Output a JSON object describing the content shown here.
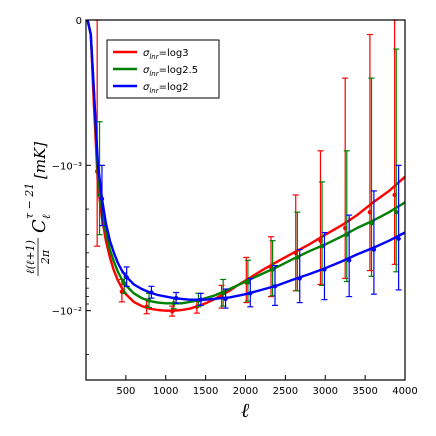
{
  "chart_data": {
    "type": "line",
    "title": "",
    "xlabel": "ℓ",
    "ylabel": "ℓ(ℓ+1)/2π C_ℓ^{τ−21} [mK]",
    "ylabel_parts": {
      "fraction_numerator": "ℓ(ℓ+1)",
      "fraction_denominator": "2π",
      "symbol": "C",
      "subscript": "ℓ",
      "superscript": "τ − 21",
      "unit": "[mK]"
    },
    "xlim": [
      0,
      4000
    ],
    "y_scale": "symlog",
    "y_linthresh": 0.001,
    "ylim": [
      -0.03,
      0
    ],
    "x_ticks": [
      500,
      1000,
      1500,
      2000,
      2500,
      3000,
      3500,
      4000
    ],
    "x_tick_labels": [
      "500",
      "1000",
      "1500",
      "2000",
      "2500",
      "3000",
      "3500",
      "4000"
    ],
    "y_ticks": [
      0,
      -0.001,
      -0.01
    ],
    "y_tick_labels": [
      "0",
      "−10⁻³",
      "−10⁻²"
    ],
    "grid": false,
    "legend_position": "top-left",
    "legend_prefix": "σ",
    "legend_subscript": "lnr",
    "series": [
      {
        "name": "=log3",
        "color": "#ff0000",
        "x": [
          20,
          60,
          100,
          150,
          200,
          250,
          300,
          350,
          400,
          450,
          500,
          600,
          700,
          800,
          900,
          1000,
          1100,
          1200,
          1300,
          1400,
          1500,
          1600,
          1700,
          1800,
          1900,
          2000,
          2200,
          2400,
          2600,
          2800,
          3000,
          3200,
          3400,
          3600,
          3800,
          4000
        ],
        "y": [
          0,
          -0.0001,
          -0.0006,
          -0.0014,
          -0.0023,
          -0.0033,
          -0.0043,
          -0.0053,
          -0.0062,
          -0.007,
          -0.0077,
          -0.0087,
          -0.0093,
          -0.0097,
          -0.0099,
          -0.01,
          -0.01,
          -0.0099,
          -0.0097,
          -0.0093,
          -0.0089,
          -0.0084,
          -0.0078,
          -0.0073,
          -0.0067,
          -0.0062,
          -0.0053,
          -0.0046,
          -0.004,
          -0.0035,
          -0.003,
          -0.0026,
          -0.0022,
          -0.0018,
          -0.0015,
          -0.0012
        ],
        "error_points": [
          {
            "x": 140,
            "y": -0.0011,
            "lo": -0.0036,
            "hi": 0
          },
          {
            "x": 450,
            "y": -0.0074,
            "lo": -0.0087,
            "hi": -0.0061
          },
          {
            "x": 760,
            "y": -0.0094,
            "lo": -0.0105,
            "hi": -0.0083
          },
          {
            "x": 1080,
            "y": -0.0101,
            "lo": -0.0109,
            "hi": -0.0093
          },
          {
            "x": 1390,
            "y": -0.0094,
            "lo": -0.0104,
            "hi": -0.0084
          },
          {
            "x": 1700,
            "y": -0.0081,
            "lo": -0.0096,
            "hi": -0.0067
          },
          {
            "x": 2010,
            "y": -0.0064,
            "lo": -0.0088,
            "hi": -0.0043
          },
          {
            "x": 2320,
            "y": -0.005,
            "lo": -0.008,
            "hi": -0.0031
          },
          {
            "x": 2630,
            "y": -0.004,
            "lo": -0.0073,
            "hi": -0.0016
          },
          {
            "x": 2940,
            "y": -0.0033,
            "lo": -0.0066,
            "hi": -0.0009
          },
          {
            "x": 3250,
            "y": -0.0027,
            "lo": -0.006,
            "hi": -0.0004
          },
          {
            "x": 3560,
            "y": -0.0021,
            "lo": -0.0053,
            "hi": -0.0001
          },
          {
            "x": 3870,
            "y": -0.0016,
            "lo": -0.0048,
            "hi": 0
          }
        ]
      },
      {
        "name": "=log2.5",
        "color": "#008000",
        "x": [
          20,
          60,
          100,
          150,
          200,
          250,
          300,
          350,
          400,
          450,
          500,
          600,
          700,
          800,
          900,
          1000,
          1100,
          1200,
          1300,
          1400,
          1500,
          1600,
          1700,
          1800,
          1900,
          2000,
          2200,
          2400,
          2600,
          2800,
          3000,
          3200,
          3400,
          3600,
          3800,
          4000
        ],
        "y": [
          0,
          -0.0001,
          -0.0005,
          -0.0012,
          -0.002,
          -0.0029,
          -0.0038,
          -0.0046,
          -0.0054,
          -0.0061,
          -0.0067,
          -0.0076,
          -0.0082,
          -0.0086,
          -0.0088,
          -0.0089,
          -0.0089,
          -0.0089,
          -0.0087,
          -0.0085,
          -0.0082,
          -0.0079,
          -0.0075,
          -0.0071,
          -0.0067,
          -0.0063,
          -0.0056,
          -0.005,
          -0.0044,
          -0.0039,
          -0.0035,
          -0.0031,
          -0.0027,
          -0.0024,
          -0.0021,
          -0.0018
        ],
        "error_points": [
          {
            "x": 170,
            "y": -0.0016,
            "lo": -0.003,
            "hi": -0.0007
          },
          {
            "x": 480,
            "y": -0.0065,
            "lo": -0.0076,
            "hi": -0.0055
          },
          {
            "x": 790,
            "y": -0.0085,
            "lo": -0.0095,
            "hi": -0.0076
          },
          {
            "x": 1100,
            "y": -0.0089,
            "lo": -0.0097,
            "hi": -0.0081
          },
          {
            "x": 1410,
            "y": -0.0085,
            "lo": -0.0094,
            "hi": -0.0076
          },
          {
            "x": 1720,
            "y": -0.0076,
            "lo": -0.0093,
            "hi": -0.0061
          },
          {
            "x": 2030,
            "y": -0.0064,
            "lo": -0.0086,
            "hi": -0.0045
          },
          {
            "x": 2340,
            "y": -0.0052,
            "lo": -0.0079,
            "hi": -0.0033
          },
          {
            "x": 2650,
            "y": -0.0043,
            "lo": -0.0073,
            "hi": -0.0021
          },
          {
            "x": 2960,
            "y": -0.0036,
            "lo": -0.0067,
            "hi": -0.0013
          },
          {
            "x": 3270,
            "y": -0.003,
            "lo": -0.0063,
            "hi": -0.0009
          },
          {
            "x": 3580,
            "y": -0.0025,
            "lo": -0.0058,
            "hi": -0.0004
          },
          {
            "x": 3890,
            "y": -0.0021,
            "lo": -0.0054,
            "hi": -0.0002
          }
        ]
      },
      {
        "name": "=log2",
        "color": "#0000ff",
        "x": [
          20,
          60,
          100,
          150,
          200,
          250,
          300,
          350,
          400,
          450,
          500,
          600,
          700,
          800,
          900,
          1000,
          1100,
          1200,
          1300,
          1400,
          1500,
          1600,
          1700,
          1800,
          1900,
          2000,
          2200,
          2400,
          2600,
          2800,
          3000,
          3200,
          3400,
          3600,
          3800,
          4000
        ],
        "y": [
          0,
          -0.0001,
          -0.0005,
          -0.001,
          -0.0017,
          -0.0025,
          -0.0033,
          -0.004,
          -0.0047,
          -0.0053,
          -0.0058,
          -0.0066,
          -0.0071,
          -0.0075,
          -0.0078,
          -0.008,
          -0.0082,
          -0.0083,
          -0.0084,
          -0.0084,
          -0.0084,
          -0.0083,
          -0.0082,
          -0.0081,
          -0.0079,
          -0.0077,
          -0.0072,
          -0.0067,
          -0.0061,
          -0.0056,
          -0.0051,
          -0.0046,
          -0.0041,
          -0.0037,
          -0.0033,
          -0.0029
        ],
        "error_points": [
          {
            "x": 200,
            "y": -0.0017,
            "lo": -0.0026,
            "hi": -0.001
          },
          {
            "x": 510,
            "y": -0.0059,
            "lo": -0.0068,
            "hi": -0.005
          },
          {
            "x": 820,
            "y": -0.0075,
            "lo": -0.0082,
            "hi": -0.0068
          },
          {
            "x": 1130,
            "y": -0.0082,
            "lo": -0.0089,
            "hi": -0.0075
          },
          {
            "x": 1440,
            "y": -0.0084,
            "lo": -0.0092,
            "hi": -0.0076
          },
          {
            "x": 1750,
            "y": -0.0083,
            "lo": -0.0096,
            "hi": -0.0071
          },
          {
            "x": 2060,
            "y": -0.0076,
            "lo": -0.0094,
            "hi": -0.006
          },
          {
            "x": 2370,
            "y": -0.0068,
            "lo": -0.0092,
            "hi": -0.0049
          },
          {
            "x": 2680,
            "y": -0.006,
            "lo": -0.0088,
            "hi": -0.0038
          },
          {
            "x": 2990,
            "y": -0.0052,
            "lo": -0.0084,
            "hi": -0.0029
          },
          {
            "x": 3300,
            "y": -0.0045,
            "lo": -0.008,
            "hi": -0.0022
          },
          {
            "x": 3610,
            "y": -0.0038,
            "lo": -0.0077,
            "hi": -0.0015
          },
          {
            "x": 3920,
            "y": -0.0032,
            "lo": -0.0072,
            "hi": -0.001
          }
        ]
      }
    ]
  }
}
